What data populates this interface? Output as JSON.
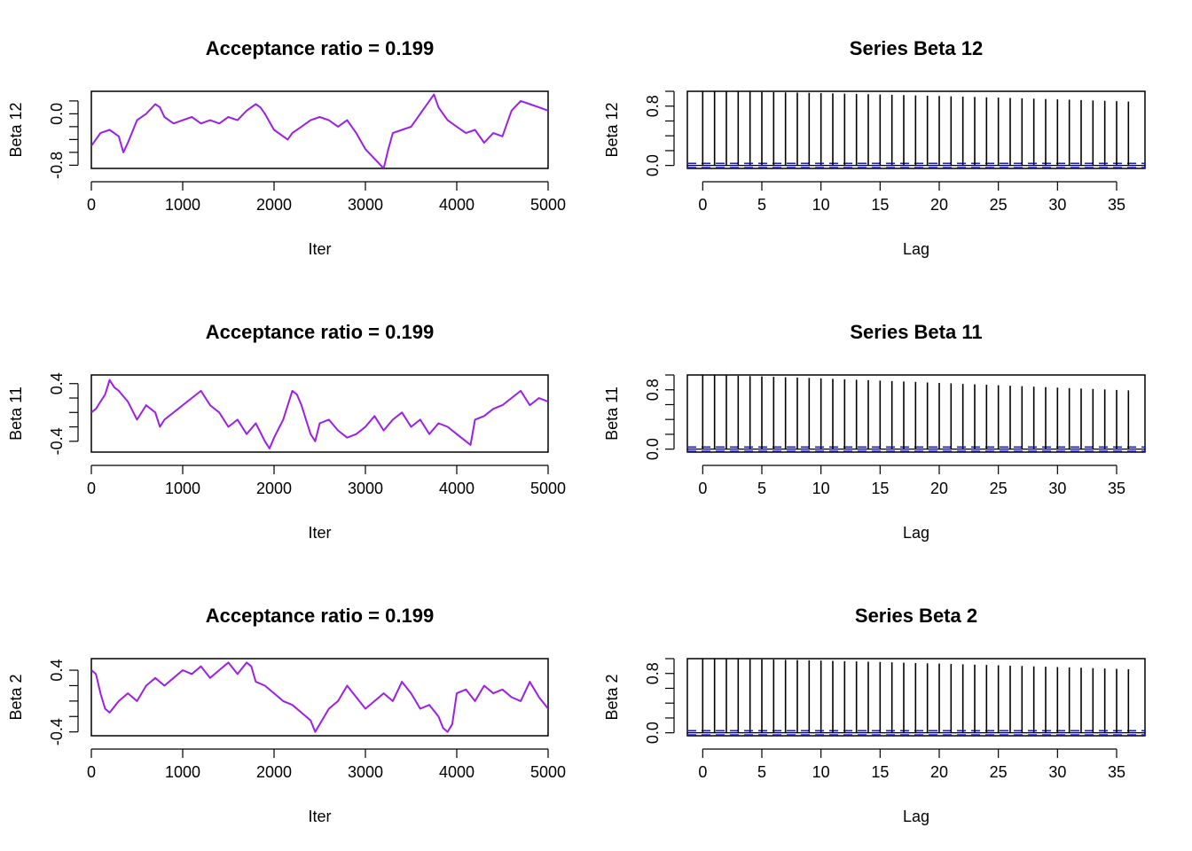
{
  "colors": {
    "trace": "#9b1fe8",
    "acf": "#000000",
    "ci": "#1a1aee",
    "axis": "#000000"
  },
  "chart_data": [
    {
      "type": "line",
      "title": "Acceptance ratio = 0.199",
      "xlabel": "Iter",
      "ylabel": "Beta 12",
      "xlim": [
        0,
        5000
      ],
      "ylim": [
        -0.85,
        0.35
      ],
      "xticks": [
        0,
        1000,
        2000,
        3000,
        4000,
        5000
      ],
      "xtick_labels": [
        "0",
        "1000",
        "2000",
        "3000",
        "4000",
        "5000"
      ],
      "yticks": [
        -0.8,
        -0.6,
        -0.4,
        -0.2,
        0.0,
        0.2
      ],
      "ytick_labels": [
        "-0.8",
        "0.0"
      ],
      "ytick_label_values": [
        -0.8,
        0.0
      ],
      "x": [
        0,
        100,
        200,
        300,
        350,
        400,
        500,
        600,
        700,
        750,
        800,
        900,
        1000,
        1100,
        1200,
        1300,
        1400,
        1500,
        1600,
        1700,
        1800,
        1850,
        1900,
        2000,
        2100,
        2150,
        2200,
        2300,
        2400,
        2500,
        2600,
        2700,
        2800,
        2900,
        3000,
        3100,
        3200,
        3250,
        3300,
        3400,
        3500,
        3600,
        3700,
        3750,
        3800,
        3900,
        4000,
        4100,
        4200,
        4300,
        4400,
        4500,
        4600,
        4700,
        4800,
        4900,
        5000
      ],
      "y": [
        -0.5,
        -0.3,
        -0.25,
        -0.35,
        -0.6,
        -0.45,
        -0.1,
        0.0,
        0.15,
        0.1,
        -0.05,
        -0.15,
        -0.1,
        -0.05,
        -0.15,
        -0.1,
        -0.15,
        -0.05,
        -0.1,
        0.05,
        0.15,
        0.1,
        0.0,
        -0.25,
        -0.35,
        -0.4,
        -0.3,
        -0.2,
        -0.1,
        -0.05,
        -0.1,
        -0.2,
        -0.1,
        -0.3,
        -0.55,
        -0.7,
        -0.85,
        -0.55,
        -0.3,
        -0.25,
        -0.2,
        0.0,
        0.2,
        0.3,
        0.1,
        -0.1,
        -0.2,
        -0.3,
        -0.25,
        -0.45,
        -0.3,
        -0.35,
        0.05,
        0.2,
        0.15,
        0.1,
        0.05
      ]
    },
    {
      "type": "bar",
      "title": "Series Beta 12",
      "xlabel": "Lag",
      "ylabel": "Beta 12",
      "xlim": [
        -1.3,
        37.4
      ],
      "ylim": [
        -0.04,
        1.0
      ],
      "xticks": [
        0,
        5,
        10,
        15,
        20,
        25,
        30,
        35
      ],
      "xtick_labels": [
        "0",
        "5",
        "10",
        "15",
        "20",
        "25",
        "30",
        "35"
      ],
      "yticks": [
        0.0,
        0.2,
        0.4,
        0.6,
        0.8,
        1.0
      ],
      "ytick_labels": [
        "0.0",
        "0.8"
      ],
      "ytick_label_values": [
        0.0,
        0.8
      ],
      "ci": [
        -0.028,
        0.028
      ],
      "lags": [
        0,
        1,
        2,
        3,
        4,
        5,
        6,
        7,
        8,
        9,
        10,
        11,
        12,
        13,
        14,
        15,
        16,
        17,
        18,
        19,
        20,
        21,
        22,
        23,
        24,
        25,
        26,
        27,
        28,
        29,
        30,
        31,
        32,
        33,
        34,
        35,
        36
      ],
      "values": [
        1.0,
        0.999,
        0.997,
        0.995,
        0.993,
        0.991,
        0.988,
        0.985,
        0.982,
        0.979,
        0.976,
        0.972,
        0.968,
        0.965,
        0.961,
        0.957,
        0.953,
        0.949,
        0.945,
        0.941,
        0.937,
        0.932,
        0.928,
        0.924,
        0.919,
        0.915,
        0.91,
        0.905,
        0.901,
        0.896,
        0.891,
        0.887,
        0.882,
        0.877,
        0.872,
        0.867,
        0.862
      ]
    },
    {
      "type": "line",
      "title": "Acceptance ratio = 0.199",
      "xlabel": "Iter",
      "ylabel": "Beta 11",
      "xlim": [
        0,
        5000
      ],
      "ylim": [
        -0.55,
        0.52
      ],
      "xticks": [
        0,
        1000,
        2000,
        3000,
        4000,
        5000
      ],
      "xtick_labels": [
        "0",
        "1000",
        "2000",
        "3000",
        "4000",
        "5000"
      ],
      "yticks": [
        -0.4,
        -0.2,
        0.0,
        0.2,
        0.4
      ],
      "ytick_labels": [
        "-0.4",
        "0.4"
      ],
      "ytick_label_values": [
        -0.4,
        0.4
      ],
      "x": [
        0,
        50,
        100,
        150,
        200,
        250,
        300,
        400,
        500,
        600,
        700,
        750,
        800,
        900,
        1000,
        1100,
        1200,
        1300,
        1400,
        1500,
        1600,
        1700,
        1800,
        1900,
        1950,
        2000,
        2100,
        2200,
        2250,
        2300,
        2350,
        2400,
        2450,
        2500,
        2600,
        2700,
        2800,
        2900,
        3000,
        3100,
        3200,
        3300,
        3400,
        3500,
        3600,
        3700,
        3800,
        3900,
        4000,
        4100,
        4150,
        4200,
        4300,
        4400,
        4500,
        4600,
        4700,
        4800,
        4900,
        5000
      ],
      "y": [
        0.0,
        0.05,
        0.15,
        0.25,
        0.45,
        0.35,
        0.3,
        0.15,
        -0.1,
        0.1,
        0.0,
        -0.2,
        -0.1,
        0.0,
        0.1,
        0.2,
        0.3,
        0.1,
        0.0,
        -0.2,
        -0.1,
        -0.3,
        -0.15,
        -0.4,
        -0.5,
        -0.35,
        -0.1,
        0.3,
        0.25,
        0.1,
        -0.1,
        -0.3,
        -0.4,
        -0.15,
        -0.1,
        -0.25,
        -0.35,
        -0.3,
        -0.2,
        -0.05,
        -0.25,
        -0.1,
        0.0,
        -0.2,
        -0.1,
        -0.3,
        -0.15,
        -0.2,
        -0.3,
        -0.4,
        -0.45,
        -0.1,
        -0.05,
        0.05,
        0.1,
        0.2,
        0.3,
        0.1,
        0.2,
        0.15
      ]
    },
    {
      "type": "bar",
      "title": "Series Beta 11",
      "xlabel": "Lag",
      "ylabel": "Beta 11",
      "xlim": [
        -1.3,
        37.4
      ],
      "ylim": [
        -0.04,
        1.0
      ],
      "xticks": [
        0,
        5,
        10,
        15,
        20,
        25,
        30,
        35
      ],
      "xtick_labels": [
        "0",
        "5",
        "10",
        "15",
        "20",
        "25",
        "30",
        "35"
      ],
      "yticks": [
        0.0,
        0.2,
        0.4,
        0.6,
        0.8,
        1.0
      ],
      "ytick_labels": [
        "0.0",
        "0.8"
      ],
      "ytick_label_values": [
        0.0,
        0.8
      ],
      "ci": [
        -0.028,
        0.028
      ],
      "lags": [
        0,
        1,
        2,
        3,
        4,
        5,
        6,
        7,
        8,
        9,
        10,
        11,
        12,
        13,
        14,
        15,
        16,
        17,
        18,
        19,
        20,
        21,
        22,
        23,
        24,
        25,
        26,
        27,
        28,
        29,
        30,
        31,
        32,
        33,
        34,
        35,
        36
      ],
      "values": [
        1.0,
        0.997,
        0.993,
        0.989,
        0.985,
        0.98,
        0.975,
        0.97,
        0.965,
        0.96,
        0.954,
        0.948,
        0.942,
        0.936,
        0.93,
        0.924,
        0.918,
        0.912,
        0.906,
        0.899,
        0.893,
        0.887,
        0.88,
        0.874,
        0.868,
        0.861,
        0.855,
        0.849,
        0.842,
        0.836,
        0.83,
        0.823,
        0.817,
        0.811,
        0.805,
        0.798,
        0.792
      ]
    },
    {
      "type": "line",
      "title": "Acceptance ratio = 0.199",
      "xlabel": "Iter",
      "ylabel": "Beta 2",
      "xlim": [
        0,
        5000
      ],
      "ylim": [
        -0.45,
        0.55
      ],
      "xticks": [
        0,
        1000,
        2000,
        3000,
        4000,
        5000
      ],
      "xtick_labels": [
        "0",
        "1000",
        "2000",
        "3000",
        "4000",
        "5000"
      ],
      "yticks": [
        -0.4,
        -0.2,
        0.0,
        0.2,
        0.4
      ],
      "ytick_labels": [
        "-0.4",
        "0.4"
      ],
      "ytick_label_values": [
        -0.4,
        0.4
      ],
      "x": [
        0,
        50,
        100,
        150,
        200,
        300,
        400,
        500,
        600,
        700,
        800,
        900,
        1000,
        1100,
        1200,
        1300,
        1400,
        1500,
        1600,
        1700,
        1750,
        1800,
        1900,
        2000,
        2100,
        2200,
        2300,
        2400,
        2450,
        2500,
        2600,
        2700,
        2800,
        2900,
        3000,
        3100,
        3200,
        3300,
        3400,
        3500,
        3600,
        3700,
        3800,
        3850,
        3900,
        3950,
        4000,
        4100,
        4200,
        4300,
        4400,
        4500,
        4600,
        4700,
        4800,
        4900,
        5000
      ],
      "y": [
        0.4,
        0.35,
        0.1,
        -0.1,
        -0.15,
        0.0,
        0.1,
        0.0,
        0.2,
        0.3,
        0.2,
        0.3,
        0.4,
        0.35,
        0.45,
        0.3,
        0.4,
        0.5,
        0.35,
        0.5,
        0.45,
        0.25,
        0.2,
        0.1,
        0.0,
        -0.05,
        -0.15,
        -0.25,
        -0.4,
        -0.3,
        -0.1,
        0.0,
        0.2,
        0.05,
        -0.1,
        0.0,
        0.1,
        0.0,
        0.25,
        0.1,
        -0.1,
        -0.05,
        -0.2,
        -0.35,
        -0.4,
        -0.3,
        0.1,
        0.15,
        0.0,
        0.2,
        0.1,
        0.15,
        0.05,
        0.0,
        0.25,
        0.05,
        -0.1
      ]
    },
    {
      "type": "bar",
      "title": "Series Beta 2",
      "xlabel": "Lag",
      "ylabel": "Beta 2",
      "xlim": [
        -1.3,
        37.4
      ],
      "ylim": [
        -0.04,
        1.0
      ],
      "xticks": [
        0,
        5,
        10,
        15,
        20,
        25,
        30,
        35
      ],
      "xtick_labels": [
        "0",
        "5",
        "10",
        "15",
        "20",
        "25",
        "30",
        "35"
      ],
      "yticks": [
        0.0,
        0.2,
        0.4,
        0.6,
        0.8,
        1.0
      ],
      "ytick_labels": [
        "0.0",
        "0.8"
      ],
      "ytick_label_values": [
        0.0,
        0.8
      ],
      "ci": [
        -0.028,
        0.028
      ],
      "lags": [
        0,
        1,
        2,
        3,
        4,
        5,
        6,
        7,
        8,
        9,
        10,
        11,
        12,
        13,
        14,
        15,
        16,
        17,
        18,
        19,
        20,
        21,
        22,
        23,
        24,
        25,
        26,
        27,
        28,
        29,
        30,
        31,
        32,
        33,
        34,
        35,
        36
      ],
      "values": [
        1.0,
        0.999,
        0.997,
        0.995,
        0.992,
        0.99,
        0.987,
        0.984,
        0.981,
        0.978,
        0.974,
        0.97,
        0.966,
        0.962,
        0.958,
        0.954,
        0.95,
        0.946,
        0.941,
        0.937,
        0.933,
        0.928,
        0.924,
        0.919,
        0.915,
        0.91,
        0.905,
        0.901,
        0.896,
        0.891,
        0.886,
        0.882,
        0.877,
        0.872,
        0.867,
        0.862,
        0.857
      ]
    }
  ]
}
